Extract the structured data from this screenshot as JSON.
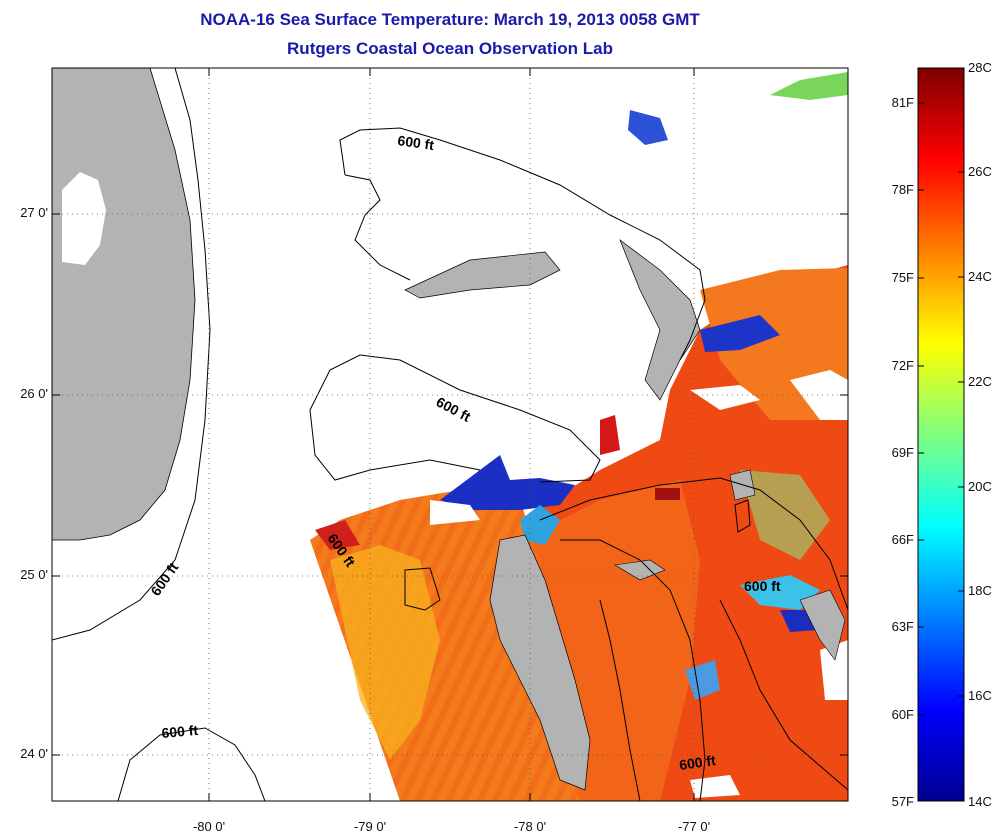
{
  "header": {
    "title": "NOAA-16 Sea Surface Temperature:  March 19, 2013 0058 GMT",
    "subtitle": "Rutgers Coastal Ocean Observation Lab"
  },
  "axes": {
    "lat_ticks": [
      "27 0'",
      "26 0'",
      "25 0'",
      "24 0'"
    ],
    "lon_ticks": [
      "-80 0'",
      "-79 0'",
      "-78 0'",
      "-77 0'"
    ]
  },
  "contours": {
    "label": "600 ft",
    "labels": [
      "600 ft",
      "600 ft",
      "600 ft",
      "600 ft",
      "600 ft",
      "600 ft"
    ]
  },
  "colorbar": {
    "fahrenheit": [
      "81F",
      "78F",
      "75F",
      "72F",
      "69F",
      "66F",
      "63F",
      "60F",
      "57F"
    ],
    "celsius": [
      "28C",
      "26C",
      "24C",
      "22C",
      "20C",
      "18C",
      "16C",
      "14C"
    ],
    "colors": [
      "#7f0000",
      "#ff0000",
      "#ff8000",
      "#ffff00",
      "#00ffff",
      "#0000ff",
      "#00008f"
    ]
  },
  "palette": {
    "land": "#b3b3b3",
    "no_data": "#ffffff",
    "title_color": "#1a1aa8"
  }
}
